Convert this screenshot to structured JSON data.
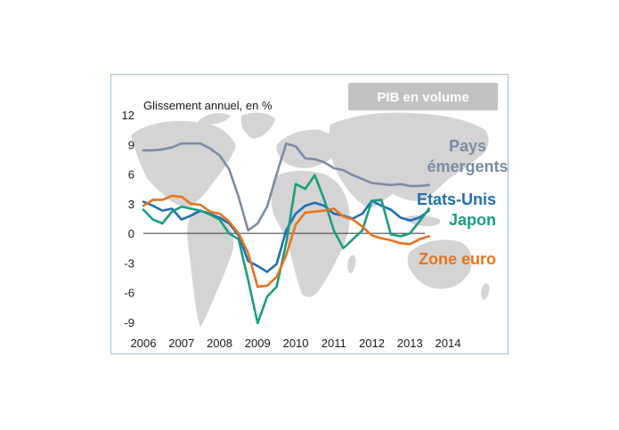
{
  "chart_data": {
    "type": "line",
    "badge": "PIB en volume",
    "subtitle": "Glissement annuel, en %",
    "ylim": [
      -9,
      12
    ],
    "yticks": [
      12,
      9,
      6,
      3,
      0,
      -3,
      -6,
      -9
    ],
    "xlim": [
      2006,
      2014
    ],
    "xticks": [
      "2006",
      "2007",
      "2008",
      "2009",
      "2010",
      "2011",
      "2012",
      "2013",
      "2014"
    ],
    "grid": false,
    "colors": {
      "pays_emergents": "#7b8ba6",
      "etats_unis": "#1f6fb5",
      "japon": "#1a9e80",
      "zone_euro": "#e8731c",
      "map": "#d4d4d4",
      "badge": "#c2c2c2"
    },
    "series": [
      {
        "key": "pays_emergents",
        "label_lines": [
          "Pays",
          "émergents"
        ],
        "x": [
          2006.0,
          2006.25,
          2006.5,
          2006.75,
          2007.0,
          2007.25,
          2007.5,
          2007.75,
          2008.0,
          2008.25,
          2008.5,
          2008.75,
          2009.0,
          2009.25,
          2009.5,
          2009.75,
          2010.0,
          2010.25,
          2010.5,
          2010.75,
          2011.0,
          2011.25,
          2011.5,
          2011.75,
          2012.0,
          2012.25,
          2012.5,
          2012.75,
          2013.0,
          2013.25,
          2013.5
        ],
        "y": [
          8.4,
          8.4,
          8.5,
          8.7,
          9.1,
          9.1,
          9.1,
          8.6,
          7.9,
          6.5,
          3.7,
          0.3,
          1.0,
          2.7,
          6.0,
          9.1,
          8.8,
          7.6,
          7.5,
          7.2,
          6.6,
          6.4,
          5.9,
          5.5,
          5.1,
          5.0,
          4.9,
          5.0,
          4.8,
          4.8,
          4.9
        ]
      },
      {
        "key": "etats_unis",
        "label_lines": [
          "Etats-Unis"
        ],
        "x": [
          2006.0,
          2006.25,
          2006.5,
          2006.75,
          2007.0,
          2007.25,
          2007.5,
          2007.75,
          2008.0,
          2008.25,
          2008.5,
          2008.75,
          2009.0,
          2009.25,
          2009.5,
          2009.75,
          2010.0,
          2010.25,
          2010.5,
          2010.75,
          2011.0,
          2011.25,
          2011.5,
          2011.75,
          2012.0,
          2012.25,
          2012.5,
          2012.75,
          2013.0,
          2013.25,
          2013.5
        ],
        "y": [
          3.2,
          2.8,
          2.3,
          2.5,
          1.4,
          1.8,
          2.3,
          2.0,
          1.6,
          1.0,
          -0.2,
          -2.8,
          -3.3,
          -3.9,
          -3.1,
          0.3,
          2.0,
          2.8,
          3.1,
          2.8,
          2.0,
          1.8,
          1.5,
          2.0,
          3.3,
          2.8,
          2.4,
          1.6,
          1.3,
          1.6,
          2.3
        ]
      },
      {
        "key": "japon",
        "label_lines": [
          "Japon"
        ],
        "x": [
          2006.0,
          2006.25,
          2006.5,
          2006.75,
          2007.0,
          2007.25,
          2007.5,
          2007.75,
          2008.0,
          2008.25,
          2008.5,
          2008.75,
          2009.0,
          2009.25,
          2009.5,
          2009.75,
          2010.0,
          2010.25,
          2010.5,
          2010.75,
          2011.0,
          2011.25,
          2011.5,
          2011.75,
          2012.0,
          2012.25,
          2012.5,
          2012.75,
          2013.0,
          2013.25,
          2013.5
        ],
        "y": [
          2.4,
          1.4,
          1.0,
          2.2,
          2.7,
          2.5,
          2.3,
          1.9,
          1.4,
          0.0,
          -0.6,
          -4.7,
          -9.1,
          -6.4,
          -5.4,
          -1.0,
          5.0,
          4.5,
          5.9,
          3.4,
          0.3,
          -1.5,
          -0.6,
          0.3,
          3.3,
          3.4,
          -0.1,
          -0.3,
          0.0,
          1.2,
          2.5
        ]
      },
      {
        "key": "zone_euro",
        "label_lines": [
          "Zone euro"
        ],
        "x": [
          2006.0,
          2006.25,
          2006.5,
          2006.75,
          2007.0,
          2007.25,
          2007.5,
          2007.75,
          2008.0,
          2008.25,
          2008.5,
          2008.75,
          2009.0,
          2009.25,
          2009.5,
          2009.75,
          2010.0,
          2010.25,
          2010.5,
          2010.75,
          2011.0,
          2011.25,
          2011.5,
          2011.75,
          2012.0,
          2012.25,
          2012.5,
          2012.75,
          2013.0,
          2013.25,
          2013.5
        ],
        "y": [
          2.8,
          3.4,
          3.4,
          3.8,
          3.7,
          3.0,
          2.9,
          2.2,
          2.0,
          1.2,
          0.0,
          -2.0,
          -5.4,
          -5.3,
          -4.4,
          -2.2,
          0.9,
          2.1,
          2.2,
          2.3,
          2.5,
          1.7,
          1.4,
          0.7,
          -0.2,
          -0.5,
          -0.7,
          -1.0,
          -1.1,
          -0.6,
          -0.3
        ]
      }
    ]
  }
}
